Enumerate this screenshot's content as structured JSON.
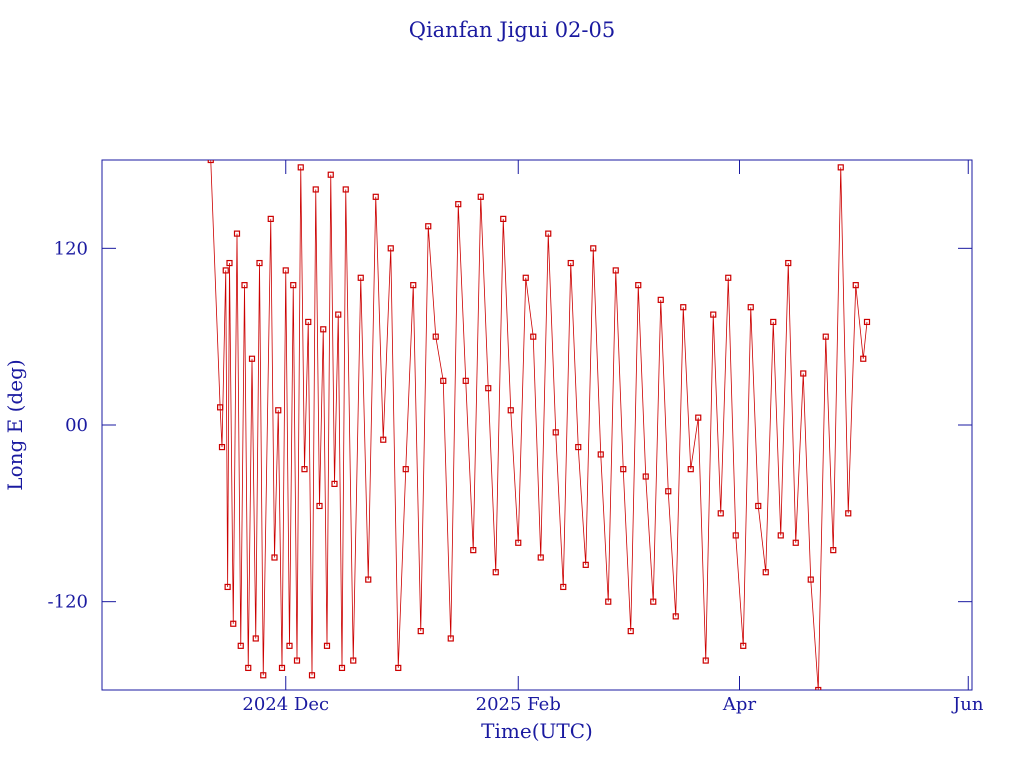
{
  "chart_data": {
    "type": "line",
    "title": "Qianfan Jigui 02-05",
    "x_label": "Time(UTC)",
    "y_label": "Long E (deg)",
    "xlim": [
      -49,
      183
    ],
    "xticks": [
      {
        "value": 0,
        "label": "2024 Dec"
      },
      {
        "value": 62,
        "label": "2025 Feb"
      },
      {
        "value": 121,
        "label": "Apr"
      },
      {
        "value": 182,
        "label": "Jun"
      }
    ],
    "ylim": [
      -180,
      180
    ],
    "yticks": [
      -120,
      {
        "value": 0,
        "label": "00"
      },
      120
    ],
    "grid": false,
    "series": [
      {
        "color": "#cc0000",
        "x": [
          -20,
          -17.5,
          -17,
          -16,
          -15.5,
          -15,
          -14,
          -13,
          -12,
          -11,
          -10,
          -9,
          -8,
          -7,
          -6,
          -4,
          -3,
          -2,
          -1,
          0,
          1,
          2,
          3,
          4,
          5,
          6,
          7,
          8,
          9,
          10,
          11,
          12,
          13,
          14,
          15,
          16,
          18,
          20,
          22,
          24,
          26,
          28,
          30,
          32,
          34,
          36,
          38,
          40,
          42,
          44,
          46,
          48,
          50,
          52,
          54,
          56,
          58,
          60,
          62,
          64,
          66,
          68,
          70,
          72,
          74,
          76,
          78,
          80,
          82,
          84,
          86,
          88,
          90,
          92,
          94,
          96,
          98,
          100,
          102,
          104,
          106,
          108,
          110,
          112,
          114,
          116,
          118,
          120,
          122,
          124,
          126,
          128,
          130,
          132,
          134,
          136,
          138,
          140,
          142,
          144,
          146,
          148,
          150,
          152,
          154,
          155
        ],
        "values": [
          180,
          12,
          -15,
          105,
          -110,
          110,
          -135,
          130,
          -150,
          95,
          -165,
          45,
          -145,
          110,
          -170,
          140,
          -90,
          10,
          -165,
          105,
          -150,
          95,
          -160,
          175,
          -30,
          70,
          -170,
          160,
          -55,
          65,
          -150,
          170,
          -40,
          75,
          -165,
          160,
          -160,
          100,
          -105,
          155,
          -10,
          120,
          -165,
          -30,
          95,
          -140,
          135,
          60,
          30,
          -145,
          150,
          30,
          -85,
          155,
          25,
          -100,
          140,
          10,
          -80,
          100,
          60,
          -90,
          130,
          -5,
          -110,
          110,
          -15,
          -95,
          120,
          -20,
          -120,
          105,
          -30,
          -140,
          95,
          -35,
          -120,
          85,
          -45,
          -130,
          80,
          -30,
          5,
          -160,
          75,
          -60,
          100,
          -75,
          -150,
          80,
          -55,
          -100,
          70,
          -75,
          110,
          -80,
          35,
          -105,
          -180,
          60,
          -85,
          175,
          -60,
          95,
          45,
          70
        ]
      }
    ]
  }
}
